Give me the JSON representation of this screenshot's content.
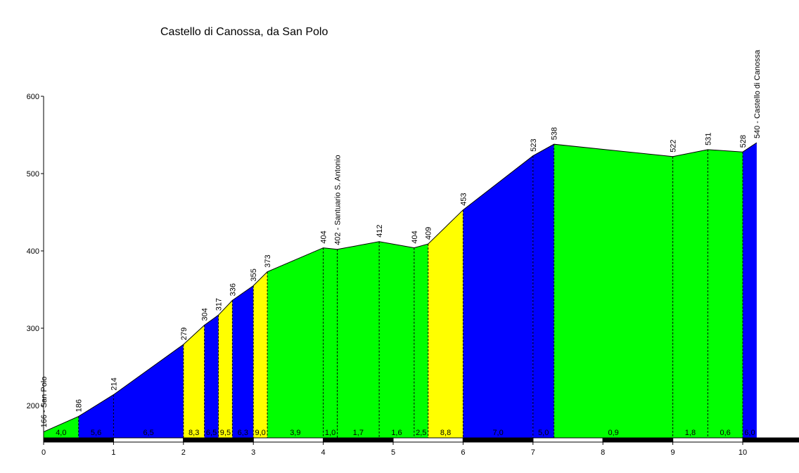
{
  "title": "Castello di Canossa, da San Polo",
  "colors": {
    "green": "#00ff00",
    "blue": "#0000ff",
    "yellow": "#ffff00",
    "axis": "#000000"
  },
  "chart_data": {
    "type": "area",
    "title": "Castello di Canossa, da San Polo",
    "xlabel": "",
    "ylabel": "",
    "xlim": [
      0,
      10.2
    ],
    "ylim": [
      155,
      600
    ],
    "xticks": [
      "0",
      "1",
      "2",
      "3",
      "4",
      "5",
      "6",
      "7",
      "8",
      "9",
      "10"
    ],
    "yticks": [
      "200",
      "300",
      "400",
      "500",
      "600"
    ],
    "grid": false,
    "points": [
      {
        "x": 0,
        "y": 166,
        "label": "166 - San Polo"
      },
      {
        "x": 0.5,
        "y": 186,
        "label": "186"
      },
      {
        "x": 1.0,
        "y": 214,
        "label": "214"
      },
      {
        "x": 2.0,
        "y": 279,
        "label": "279"
      },
      {
        "x": 2.3,
        "y": 304,
        "label": "304"
      },
      {
        "x": 2.5,
        "y": 317,
        "label": "317"
      },
      {
        "x": 2.7,
        "y": 336,
        "label": "336"
      },
      {
        "x": 3.0,
        "y": 355,
        "label": "355"
      },
      {
        "x": 3.2,
        "y": 373,
        "label": "373"
      },
      {
        "x": 4.0,
        "y": 404,
        "label": "404"
      },
      {
        "x": 4.2,
        "y": 402,
        "label": "402 - Santuario S. Antonio"
      },
      {
        "x": 4.8,
        "y": 412,
        "label": "412"
      },
      {
        "x": 5.3,
        "y": 404,
        "label": "404"
      },
      {
        "x": 5.5,
        "y": 409,
        "label": "409"
      },
      {
        "x": 6.0,
        "y": 453,
        "label": "453"
      },
      {
        "x": 7.0,
        "y": 523,
        "label": "523"
      },
      {
        "x": 7.3,
        "y": 538,
        "label": "538"
      },
      {
        "x": 9.0,
        "y": 522,
        "label": "522"
      },
      {
        "x": 9.5,
        "y": 531,
        "label": "531"
      },
      {
        "x": 10.0,
        "y": 528,
        "label": "528"
      },
      {
        "x": 10.2,
        "y": 540,
        "label": "540 - Castello di Canossa"
      }
    ],
    "segments": [
      {
        "grade": "4,0",
        "color": "green"
      },
      {
        "grade": "5,6",
        "color": "blue"
      },
      {
        "grade": "6,5",
        "color": "blue"
      },
      {
        "grade": "8,3",
        "color": "yellow"
      },
      {
        "grade": "6,5",
        "color": "blue"
      },
      {
        "grade": "9,5",
        "color": "yellow"
      },
      {
        "grade": "6,3",
        "color": "blue"
      },
      {
        "grade": "9,0",
        "color": "yellow"
      },
      {
        "grade": "3,9",
        "color": "green"
      },
      {
        "grade": "1,0",
        "color": "green"
      },
      {
        "grade": "1,7",
        "color": "green"
      },
      {
        "grade": "1,6",
        "color": "green"
      },
      {
        "grade": "2,5",
        "color": "green"
      },
      {
        "grade": "8,8",
        "color": "yellow"
      },
      {
        "grade": "7,0",
        "color": "blue"
      },
      {
        "grade": "5,0",
        "color": "blue"
      },
      {
        "grade": "0,9",
        "color": "green"
      },
      {
        "grade": "1,8",
        "color": "green"
      },
      {
        "grade": "0,6",
        "color": "green"
      },
      {
        "grade": "6,0",
        "color": "blue"
      }
    ]
  }
}
